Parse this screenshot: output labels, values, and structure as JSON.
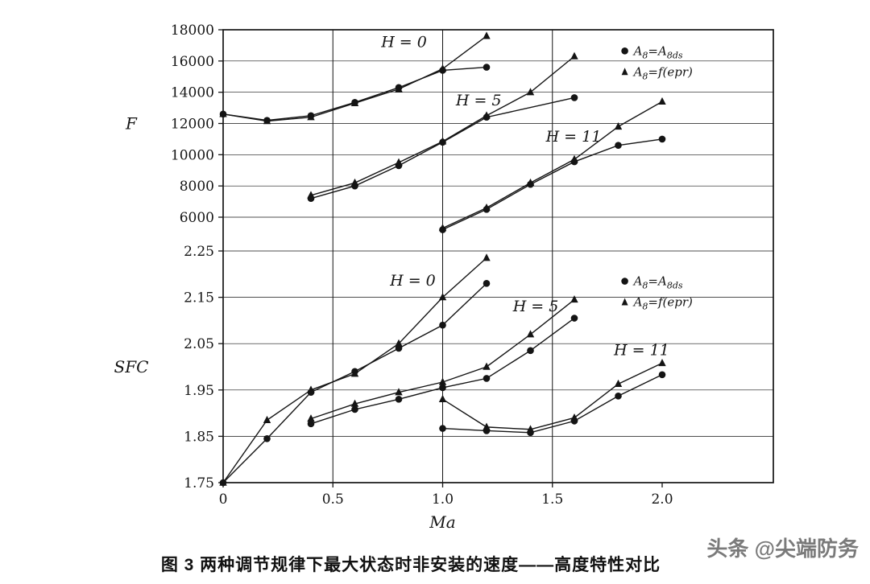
{
  "page": {
    "background": "#ffffff",
    "ink_color": "#141414",
    "caption": "图 3  两种调节规律下最大状态时非安装的速度——高度特性对比",
    "watermark": "头条 @尖端防务",
    "watermark_color": "#7a7a7a"
  },
  "chart_data": [
    {
      "type": "line",
      "title": "",
      "xlabel": "",
      "ylabel": "F",
      "xlim": [
        0,
        2.0
      ],
      "ylim": [
        6000,
        18000
      ],
      "grid": true,
      "xticks": [
        0,
        0.5,
        1.0,
        1.5,
        2.0
      ],
      "xtick_labels": [
        "0",
        "0.5",
        "1.0",
        "1.5",
        "2.0"
      ],
      "yticks": [
        6000,
        8000,
        10000,
        12000,
        14000,
        16000,
        18000
      ],
      "ytick_labels": [
        "6000",
        "8000",
        "10000",
        "12000",
        "14000",
        "16000",
        "18000"
      ],
      "annotations": [
        {
          "text": "H = 0",
          "x": 0.72,
          "y": 16900
        },
        {
          "text": "H = 5",
          "x": 1.06,
          "y": 13150
        },
        {
          "text": "H = 11",
          "x": 1.47,
          "y": 10850
        }
      ],
      "legend": {
        "position": "inside-top-right",
        "anchor": [
          0.73,
          0.1
        ],
        "items": [
          {
            "marker": "circle",
            "label_segments": [
              {
                "t": "A"
              },
              {
                "t": "8",
                "sub": true
              },
              {
                "t": "="
              },
              {
                "t": "A"
              },
              {
                "t": "8ds",
                "sub": true
              }
            ]
          },
          {
            "marker": "triangle",
            "label_segments": [
              {
                "t": "A"
              },
              {
                "t": "8",
                "sub": true
              },
              {
                "t": "="
              },
              {
                "t": "f(epr)"
              }
            ]
          }
        ]
      },
      "series": [
        {
          "name": "H=0, A8=A8ds",
          "marker": "circle",
          "x": [
            0,
            0.2,
            0.4,
            0.6,
            0.8,
            1.0,
            1.2
          ],
          "y": [
            12600,
            12200,
            12500,
            13350,
            14300,
            15400,
            15600
          ]
        },
        {
          "name": "H=0, A8=f(epr)",
          "marker": "triangle",
          "x": [
            0,
            0.2,
            0.4,
            0.6,
            0.8,
            1.0,
            1.2
          ],
          "y": [
            12600,
            12150,
            12400,
            13300,
            14200,
            15500,
            17600
          ]
        },
        {
          "name": "H=5, A8=A8ds",
          "marker": "circle",
          "x": [
            0.4,
            0.6,
            0.8,
            1.0,
            1.2,
            1.6
          ],
          "y": [
            7200,
            8000,
            9300,
            10800,
            12400,
            13650
          ]
        },
        {
          "name": "H=5, A8=f(epr)",
          "marker": "triangle",
          "x": [
            0.4,
            0.6,
            0.8,
            1.0,
            1.2,
            1.4,
            1.6
          ],
          "y": [
            7400,
            8200,
            9500,
            10850,
            12500,
            14000,
            16300
          ]
        },
        {
          "name": "H=11, A8=A8ds",
          "marker": "circle",
          "x": [
            1.0,
            1.2,
            1.4,
            1.6,
            1.8,
            2.0
          ],
          "y": [
            5200,
            6500,
            8100,
            9550,
            10600,
            11000
          ]
        },
        {
          "name": "H=11, A8=f(epr)",
          "marker": "triangle",
          "x": [
            1.0,
            1.2,
            1.4,
            1.6,
            1.8,
            2.0
          ],
          "y": [
            5300,
            6600,
            8200,
            9700,
            11800,
            13400
          ]
        }
      ]
    },
    {
      "type": "line",
      "title": "",
      "xlabel": "Ma",
      "ylabel": "SFC",
      "xlim": [
        0,
        2.0
      ],
      "ylim": [
        1.75,
        2.25
      ],
      "grid": true,
      "xticks": [
        0,
        0.5,
        1.0,
        1.5,
        2.0
      ],
      "xtick_labels": [
        "0",
        "0.5",
        "1.0",
        "1.5",
        "2.0"
      ],
      "yticks": [
        1.75,
        1.85,
        1.95,
        2.05,
        2.15,
        2.25
      ],
      "ytick_labels": [
        "1.75",
        "1.85",
        "1.95",
        "2.05",
        "2.15",
        "2.25"
      ],
      "annotations": [
        {
          "text": "H = 0",
          "x": 0.76,
          "y": 2.175
        },
        {
          "text": "H = 5",
          "x": 1.32,
          "y": 2.12
        },
        {
          "text": "H = 11",
          "x": 1.78,
          "y": 2.025
        }
      ],
      "legend": {
        "position": "inside-top-right",
        "anchor": [
          0.73,
          0.12
        ],
        "items": [
          {
            "marker": "circle",
            "label_segments": [
              {
                "t": "A"
              },
              {
                "t": "8",
                "sub": true
              },
              {
                "t": "="
              },
              {
                "t": "A"
              },
              {
                "t": "8ds",
                "sub": true
              }
            ]
          },
          {
            "marker": "triangle",
            "label_segments": [
              {
                "t": "A"
              },
              {
                "t": "8",
                "sub": true
              },
              {
                "t": "="
              },
              {
                "t": "f(epr)"
              }
            ]
          }
        ]
      },
      "series": [
        {
          "name": "H=0, A8=A8ds",
          "marker": "circle",
          "x": [
            0,
            0.2,
            0.4,
            0.6,
            0.8,
            1.0,
            1.2
          ],
          "y": [
            1.75,
            1.845,
            1.945,
            1.99,
            2.04,
            2.09,
            2.18
          ]
        },
        {
          "name": "H=0, A8=f(epr)",
          "marker": "triangle",
          "x": [
            0,
            0.2,
            0.4,
            0.6,
            0.8,
            1.0,
            1.2
          ],
          "y": [
            1.75,
            1.885,
            1.95,
            1.985,
            2.05,
            2.15,
            2.235
          ]
        },
        {
          "name": "H=5, A8=A8ds",
          "marker": "circle",
          "x": [
            0.4,
            0.6,
            0.8,
            1.0,
            1.2,
            1.4,
            1.6
          ],
          "y": [
            1.877,
            1.908,
            1.93,
            1.955,
            1.975,
            2.035,
            2.105
          ]
        },
        {
          "name": "H=5, A8=f(epr)",
          "marker": "triangle",
          "x": [
            0.4,
            0.6,
            0.8,
            1.0,
            1.2,
            1.4,
            1.6
          ],
          "y": [
            1.888,
            1.92,
            1.945,
            1.967,
            2.0,
            2.07,
            2.145
          ]
        },
        {
          "name": "H=11, A8=A8ds",
          "marker": "circle",
          "x": [
            1.0,
            1.2,
            1.4,
            1.6,
            1.8,
            2.0
          ],
          "y": [
            1.867,
            1.862,
            1.858,
            1.883,
            1.937,
            1.983
          ]
        },
        {
          "name": "H=11, A8=f(epr)",
          "marker": "triangle",
          "x": [
            1.0,
            1.2,
            1.4,
            1.6,
            1.8,
            2.0
          ],
          "y": [
            1.93,
            1.87,
            1.865,
            1.89,
            1.963,
            2.008
          ]
        }
      ]
    }
  ]
}
